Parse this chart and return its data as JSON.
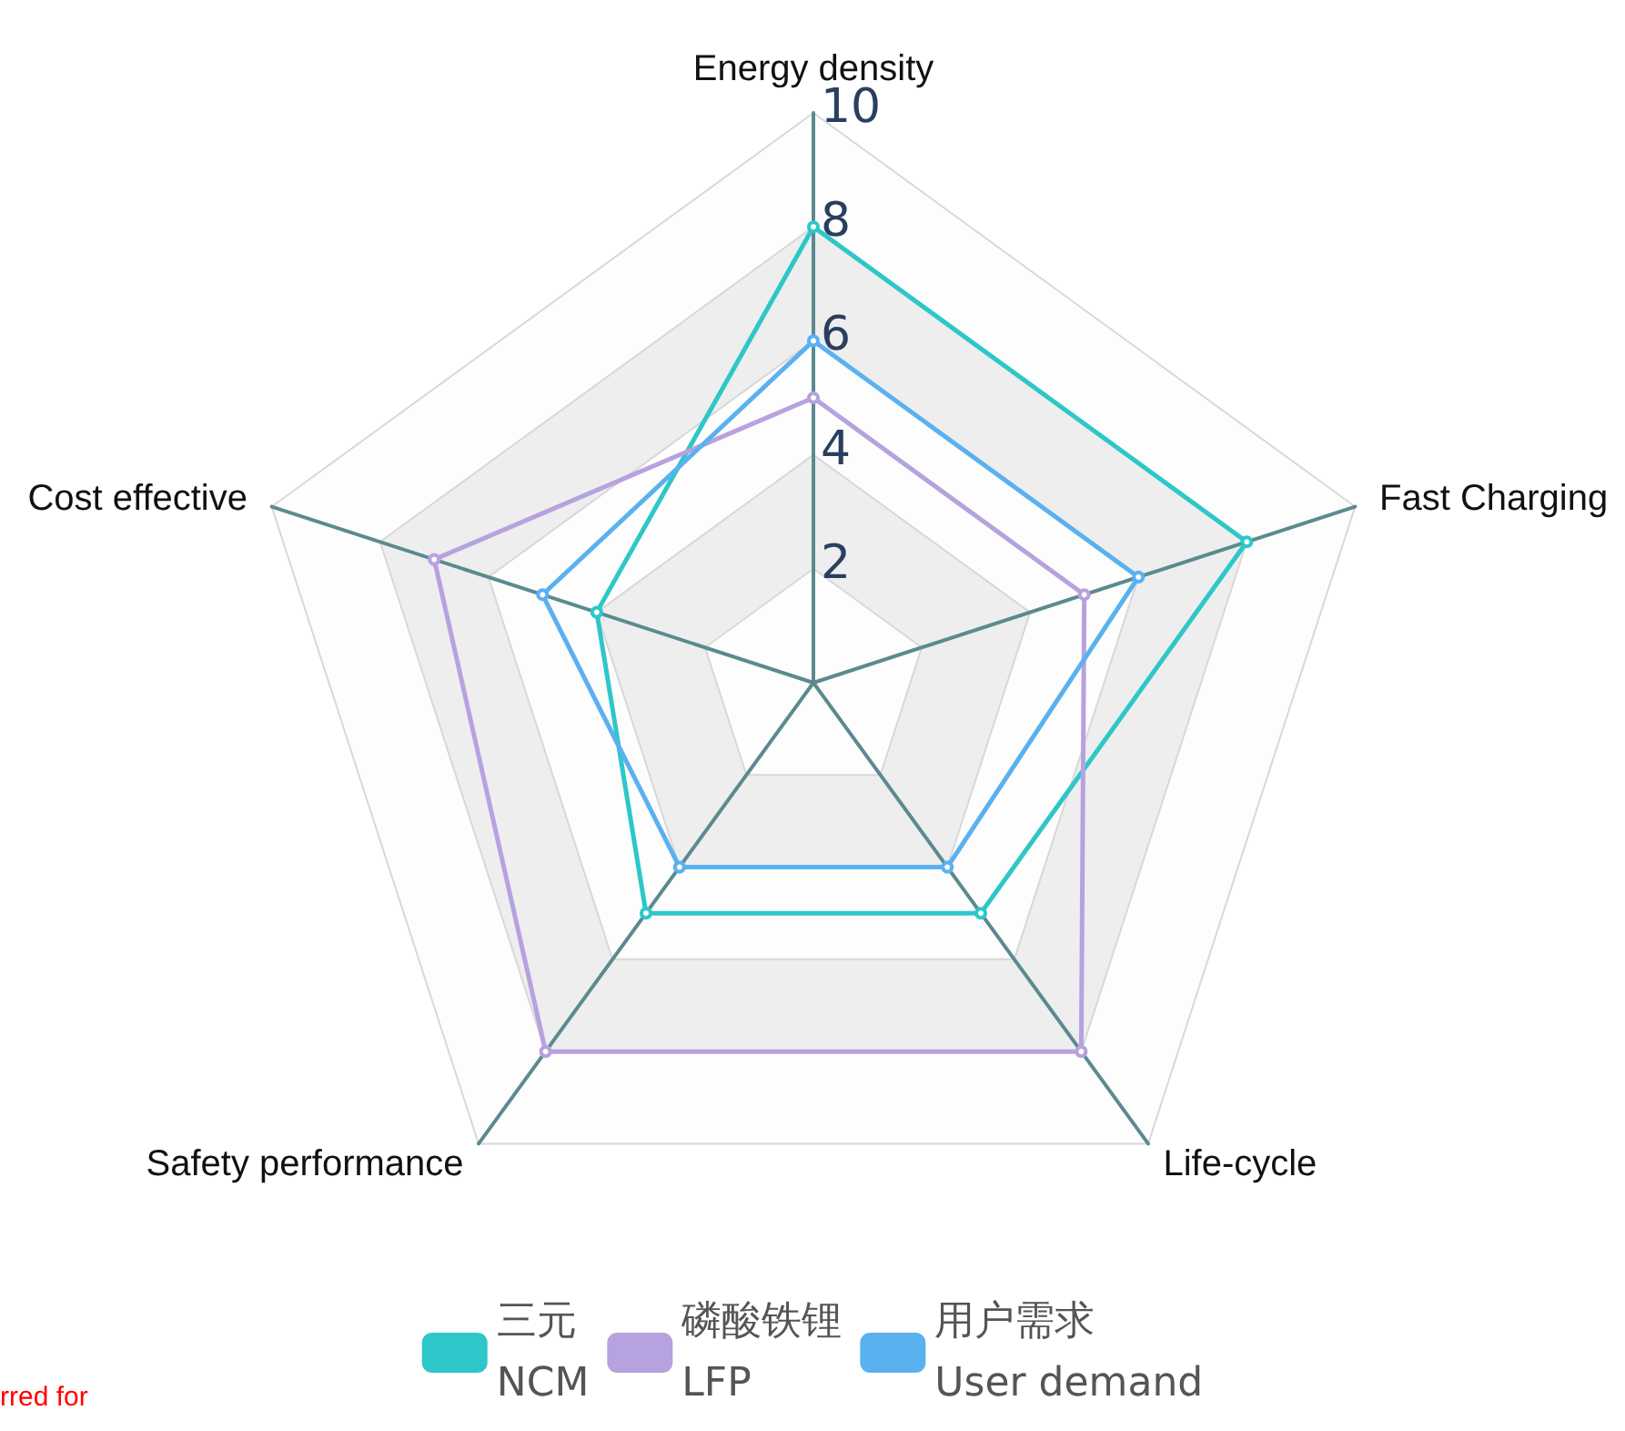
{
  "chart_data": {
    "type": "radar",
    "categories": [
      "Energy density",
      "Fast Charging",
      "Life-cycle",
      "Safety performance",
      "Cost effective"
    ],
    "series": [
      {
        "name": "三元\nNCM",
        "color": "#2ec7c9",
        "values": [
          8,
          8,
          5,
          5,
          4
        ]
      },
      {
        "name": "磷酸铁锂\nLFP",
        "color": "#b6a2de",
        "values": [
          5,
          5,
          8,
          8,
          7
        ]
      },
      {
        "name": "用户需求\nUser demand",
        "color": "#5ab1ef",
        "values": [
          6,
          6,
          4,
          4,
          5
        ]
      }
    ],
    "ylim": [
      0,
      10
    ],
    "yticks": [
      2,
      4,
      6,
      8,
      10
    ],
    "marker": "circle",
    "legend": "bottom",
    "grid": true,
    "annotations": [
      "rred for"
    ]
  }
}
